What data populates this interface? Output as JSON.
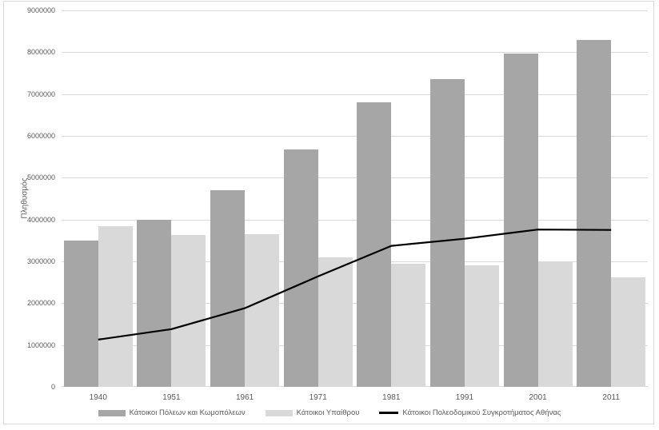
{
  "colors": {
    "background": "#ffffff",
    "chart_border": "#d9d9d9",
    "gridline": "#d9d9d9",
    "axis_text": "#595959",
    "urban_bar": "#a6a6a6",
    "rural_bar": "#d9d9d9",
    "athens_line": "#000000"
  },
  "chart_data": {
    "type": "bar",
    "title": "",
    "xlabel": "",
    "ylabel": "Πληθυσμός",
    "categories": [
      "1940",
      "1951",
      "1961",
      "1971",
      "1981",
      "1991",
      "2001",
      "2011"
    ],
    "series": [
      {
        "name": "Κάτοικοι Πόλεων και Κωμοπόλεων",
        "type": "bar",
        "color": "#a6a6a6",
        "values": [
          3500000,
          4000000,
          4700000,
          5680000,
          6800000,
          7350000,
          7970000,
          8290000
        ]
      },
      {
        "name": "Κάτοικοι Υπαίθρου",
        "type": "bar",
        "color": "#d9d9d9",
        "values": [
          3840000,
          3640000,
          3660000,
          3100000,
          2950000,
          2910000,
          2980000,
          2620000
        ]
      },
      {
        "name": "Κάτοικοι Πολεοδομικού Συγκροτήματος Αθήνας",
        "type": "line",
        "color": "#000000",
        "values": [
          1130000,
          1380000,
          1880000,
          2640000,
          3370000,
          3540000,
          3760000,
          3750000
        ]
      }
    ],
    "ylim": [
      0,
      9000000
    ],
    "ytick_step": 1000000,
    "ytick_labels": [
      "0",
      "1000000",
      "2000000",
      "3000000",
      "4000000",
      "5000000",
      "6000000",
      "7000000",
      "8000000",
      "9000000"
    ],
    "grid": true,
    "legend_position": "bottom"
  }
}
